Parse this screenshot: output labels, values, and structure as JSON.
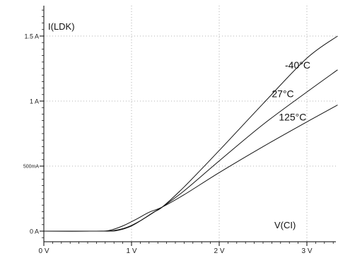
{
  "chart_data": {
    "type": "line",
    "ylabel": "I(LDK)",
    "xlabel": "V(CI)",
    "xlim": [
      0,
      3.35
    ],
    "ylim": [
      -0.05,
      1.72
    ],
    "x_ticks": [
      {
        "value": 0,
        "label": "0 V"
      },
      {
        "value": 1,
        "label": "1 V"
      },
      {
        "value": 2,
        "label": "2 V"
      },
      {
        "value": 3,
        "label": "3 V"
      }
    ],
    "y_ticks": [
      {
        "value": 0,
        "label": "0 A"
      },
      {
        "value": 0.5,
        "label": "500mA"
      },
      {
        "value": 1,
        "label": "1 A"
      },
      {
        "value": 1.5,
        "label": "1.5 A"
      }
    ],
    "grid": true,
    "series": [
      {
        "name": "-40°C",
        "x": [
          0,
          0.65,
          0.8,
          0.95,
          1.1,
          1.25,
          1.35,
          1.6,
          2.0,
          2.5,
          3.0,
          3.35
        ],
        "y": [
          0,
          0,
          0.005,
          0.03,
          0.08,
          0.145,
          0.185,
          0.34,
          0.62,
          0.98,
          1.33,
          1.5
        ]
      },
      {
        "name": "27°C",
        "x": [
          0,
          0.7,
          0.85,
          1.0,
          1.15,
          1.3,
          1.35,
          1.6,
          2.0,
          2.5,
          3.0,
          3.35
        ],
        "y": [
          0,
          0,
          0.007,
          0.04,
          0.1,
          0.165,
          0.185,
          0.31,
          0.54,
          0.82,
          1.07,
          1.24
        ]
      },
      {
        "name": "125°C",
        "x": [
          0,
          0.6,
          0.75,
          0.9,
          1.05,
          1.2,
          1.35,
          1.6,
          2.0,
          2.5,
          3.0,
          3.35
        ],
        "y": [
          0,
          0,
          0.006,
          0.04,
          0.09,
          0.145,
          0.185,
          0.28,
          0.45,
          0.65,
          0.84,
          0.97
        ]
      }
    ],
    "annotations": [
      {
        "text": "-40°C",
        "x": 2.75,
        "y": 1.25
      },
      {
        "text": "27°C",
        "x": 2.6,
        "y": 1.03
      },
      {
        "text": "125°C",
        "x": 2.68,
        "y": 0.85
      }
    ]
  }
}
